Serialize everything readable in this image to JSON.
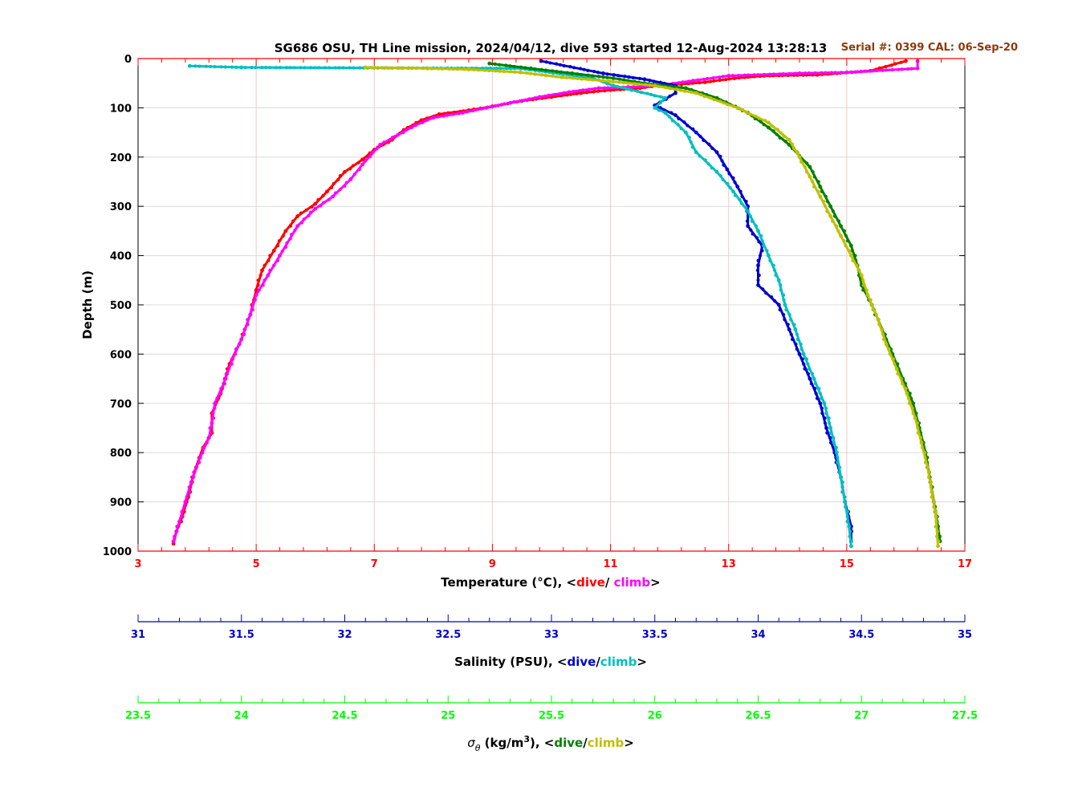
{
  "chart_data": {
    "type": "scatter",
    "title": "SG686 OSU, TH Line mission, 2024/04/12, dive 593 started 12-Aug-2024 13:28:13",
    "serial_label": "Serial #: 0399  CAL: 06-Sep-20",
    "ylabel": "Depth (m)",
    "ylim": [
      0,
      1000
    ],
    "yticks": [
      "0",
      "100",
      "200",
      "300",
      "400",
      "500",
      "600",
      "700",
      "800",
      "900",
      "1000"
    ],
    "grid": true,
    "axes": [
      {
        "id": "temperature",
        "label_main": "Temperature (°C), <",
        "label_dive": "dive",
        "label_sep": "/ ",
        "label_climb": "climb",
        "label_end": ">",
        "range": [
          3,
          17
        ],
        "ticks": [
          "3",
          "5",
          "7",
          "9",
          "11",
          "13",
          "15",
          "17"
        ],
        "color": "#ff0000",
        "dive_color": "#ff0000",
        "climb_color": "#ff00ff"
      },
      {
        "id": "salinity",
        "label_main": "Salinity (PSU), <",
        "label_dive": "dive",
        "label_sep": "/",
        "label_climb": "climb",
        "label_end": ">",
        "range": [
          31,
          35
        ],
        "ticks": [
          "31",
          "31.5",
          "32",
          "32.5",
          "33",
          "33.5",
          "34",
          "34.5",
          "35"
        ],
        "color": "#0000cc",
        "dive_color": "#0000cc",
        "climb_color": "#00bfbf"
      },
      {
        "id": "density",
        "label_sigma": "σ",
        "label_theta": "θ",
        "label_units": " (kg/m",
        "label_exp": "3",
        "label_main": "), <",
        "label_dive": "dive",
        "label_sep": "/",
        "label_climb": "climb",
        "label_end": ">",
        "range": [
          23.5,
          27.5
        ],
        "ticks": [
          "23.5",
          "24",
          "24.5",
          "25",
          "25.5",
          "26",
          "26.5",
          "27",
          "27.5"
        ],
        "color": "#00ff00",
        "dive_color": "#008000",
        "climb_color": "#bfbf00"
      }
    ],
    "series": [
      {
        "name": "Temperature dive",
        "axis": "temperature",
        "color": "#ff0000",
        "points": [
          [
            16.0,
            5
          ],
          [
            15.4,
            25
          ],
          [
            14.5,
            33
          ],
          [
            13.6,
            35
          ],
          [
            13.1,
            40
          ],
          [
            12.6,
            48
          ],
          [
            12.2,
            52
          ],
          [
            11.8,
            55
          ],
          [
            11.5,
            60
          ],
          [
            10.9,
            65
          ],
          [
            10.5,
            70
          ],
          [
            10.0,
            78
          ],
          [
            9.5,
            86
          ],
          [
            9.0,
            97
          ],
          [
            8.6,
            105
          ],
          [
            8.1,
            113
          ],
          [
            7.8,
            125
          ],
          [
            7.5,
            145
          ],
          [
            7.3,
            165
          ],
          [
            7.0,
            185
          ],
          [
            6.8,
            205
          ],
          [
            6.5,
            230
          ],
          [
            6.2,
            270
          ],
          [
            6.0,
            295
          ],
          [
            5.7,
            320
          ],
          [
            5.5,
            350
          ],
          [
            5.3,
            390
          ],
          [
            5.1,
            430
          ],
          [
            5.0,
            470
          ],
          [
            4.9,
            520
          ],
          [
            4.75,
            570
          ],
          [
            4.55,
            620
          ],
          [
            4.4,
            680
          ],
          [
            4.25,
            720
          ],
          [
            4.25,
            760
          ],
          [
            4.1,
            790
          ],
          [
            3.95,
            840
          ],
          [
            3.85,
            890
          ],
          [
            3.75,
            930
          ],
          [
            3.65,
            960
          ],
          [
            3.6,
            985
          ]
        ]
      },
      {
        "name": "Temperature climb",
        "axis": "temperature",
        "color": "#ff00ff",
        "points": [
          [
            16.2,
            5
          ],
          [
            16.2,
            20
          ],
          [
            15.0,
            28
          ],
          [
            14.2,
            30
          ],
          [
            13.0,
            35
          ],
          [
            12.4,
            45
          ],
          [
            11.8,
            55
          ],
          [
            11.3,
            58
          ],
          [
            10.8,
            60
          ],
          [
            10.3,
            68
          ],
          [
            9.8,
            78
          ],
          [
            9.3,
            90
          ],
          [
            8.9,
            100
          ],
          [
            8.5,
            110
          ],
          [
            8.0,
            120
          ],
          [
            7.7,
            135
          ],
          [
            7.4,
            155
          ],
          [
            7.1,
            175
          ],
          [
            6.8,
            215
          ],
          [
            6.6,
            245
          ],
          [
            6.3,
            280
          ],
          [
            6.0,
            305
          ],
          [
            5.7,
            340
          ],
          [
            5.4,
            400
          ],
          [
            5.2,
            440
          ],
          [
            5.0,
            480
          ],
          [
            4.9,
            520
          ],
          [
            4.75,
            570
          ],
          [
            4.6,
            610
          ],
          [
            4.45,
            660
          ],
          [
            4.3,
            700
          ],
          [
            4.25,
            740
          ],
          [
            4.2,
            770
          ],
          [
            4.05,
            810
          ],
          [
            3.9,
            860
          ],
          [
            3.8,
            900
          ],
          [
            3.7,
            940
          ],
          [
            3.6,
            980
          ]
        ]
      },
      {
        "name": "Salinity dive",
        "axis": "salinity",
        "color": "#0000cc",
        "points": [
          [
            32.95,
            5
          ],
          [
            33.25,
            30
          ],
          [
            33.45,
            42
          ],
          [
            33.6,
            55
          ],
          [
            33.6,
            70
          ],
          [
            33.5,
            95
          ],
          [
            33.6,
            115
          ],
          [
            33.7,
            150
          ],
          [
            33.8,
            190
          ],
          [
            33.85,
            225
          ],
          [
            33.9,
            260
          ],
          [
            33.95,
            300
          ],
          [
            33.95,
            340
          ],
          [
            34.02,
            380
          ],
          [
            34.0,
            420
          ],
          [
            34.0,
            460
          ],
          [
            34.1,
            500
          ],
          [
            34.15,
            550
          ],
          [
            34.2,
            600
          ],
          [
            34.25,
            650
          ],
          [
            34.3,
            700
          ],
          [
            34.33,
            750
          ],
          [
            34.37,
            800
          ],
          [
            34.4,
            850
          ],
          [
            34.42,
            900
          ],
          [
            34.45,
            950
          ],
          [
            34.45,
            980
          ]
        ]
      },
      {
        "name": "Salinity climb",
        "axis": "salinity",
        "color": "#00bfbf",
        "points": [
          [
            31.25,
            15
          ],
          [
            31.5,
            18
          ],
          [
            32.85,
            20
          ],
          [
            33.2,
            40
          ],
          [
            33.3,
            55
          ],
          [
            33.55,
            80
          ],
          [
            33.5,
            100
          ],
          [
            33.55,
            110
          ],
          [
            33.65,
            150
          ],
          [
            33.7,
            190
          ],
          [
            33.8,
            230
          ],
          [
            33.88,
            270
          ],
          [
            33.95,
            310
          ],
          [
            34.0,
            350
          ],
          [
            34.05,
            400
          ],
          [
            34.1,
            450
          ],
          [
            34.13,
            500
          ],
          [
            34.18,
            550
          ],
          [
            34.22,
            600
          ],
          [
            34.27,
            650
          ],
          [
            34.32,
            700
          ],
          [
            34.35,
            750
          ],
          [
            34.38,
            800
          ],
          [
            34.4,
            850
          ],
          [
            34.42,
            900
          ],
          [
            34.44,
            950
          ],
          [
            34.45,
            990
          ]
        ]
      },
      {
        "name": "Density dive",
        "axis": "density",
        "color": "#008000",
        "points": [
          [
            25.2,
            10
          ],
          [
            25.4,
            20
          ],
          [
            25.6,
            30
          ],
          [
            25.8,
            40
          ],
          [
            25.95,
            50
          ],
          [
            26.15,
            60
          ],
          [
            26.3,
            80
          ],
          [
            26.45,
            110
          ],
          [
            26.55,
            140
          ],
          [
            26.65,
            175
          ],
          [
            26.75,
            220
          ],
          [
            26.8,
            260
          ],
          [
            26.85,
            300
          ],
          [
            26.9,
            340
          ],
          [
            26.95,
            380
          ],
          [
            26.98,
            420
          ],
          [
            27.0,
            460
          ],
          [
            27.05,
            500
          ],
          [
            27.1,
            550
          ],
          [
            27.15,
            600
          ],
          [
            27.2,
            650
          ],
          [
            27.25,
            700
          ],
          [
            27.28,
            750
          ],
          [
            27.31,
            800
          ],
          [
            27.33,
            850
          ],
          [
            27.35,
            900
          ],
          [
            27.37,
            950
          ],
          [
            27.38,
            980
          ]
        ]
      },
      {
        "name": "Density climb",
        "axis": "density",
        "color": "#bfbf00",
        "points": [
          [
            24.6,
            18
          ],
          [
            24.9,
            20
          ],
          [
            25.1,
            22
          ],
          [
            25.35,
            28
          ],
          [
            25.55,
            38
          ],
          [
            25.75,
            45
          ],
          [
            26.0,
            55
          ],
          [
            26.2,
            70
          ],
          [
            26.4,
            100
          ],
          [
            26.55,
            130
          ],
          [
            26.65,
            165
          ],
          [
            26.7,
            200
          ],
          [
            26.75,
            240
          ],
          [
            26.8,
            280
          ],
          [
            26.85,
            320
          ],
          [
            26.9,
            360
          ],
          [
            26.95,
            400
          ],
          [
            27.0,
            440
          ],
          [
            27.03,
            480
          ],
          [
            27.08,
            530
          ],
          [
            27.12,
            580
          ],
          [
            27.17,
            630
          ],
          [
            27.22,
            680
          ],
          [
            27.26,
            730
          ],
          [
            27.29,
            780
          ],
          [
            27.32,
            830
          ],
          [
            27.34,
            880
          ],
          [
            27.36,
            930
          ],
          [
            27.37,
            990
          ]
        ]
      }
    ]
  }
}
